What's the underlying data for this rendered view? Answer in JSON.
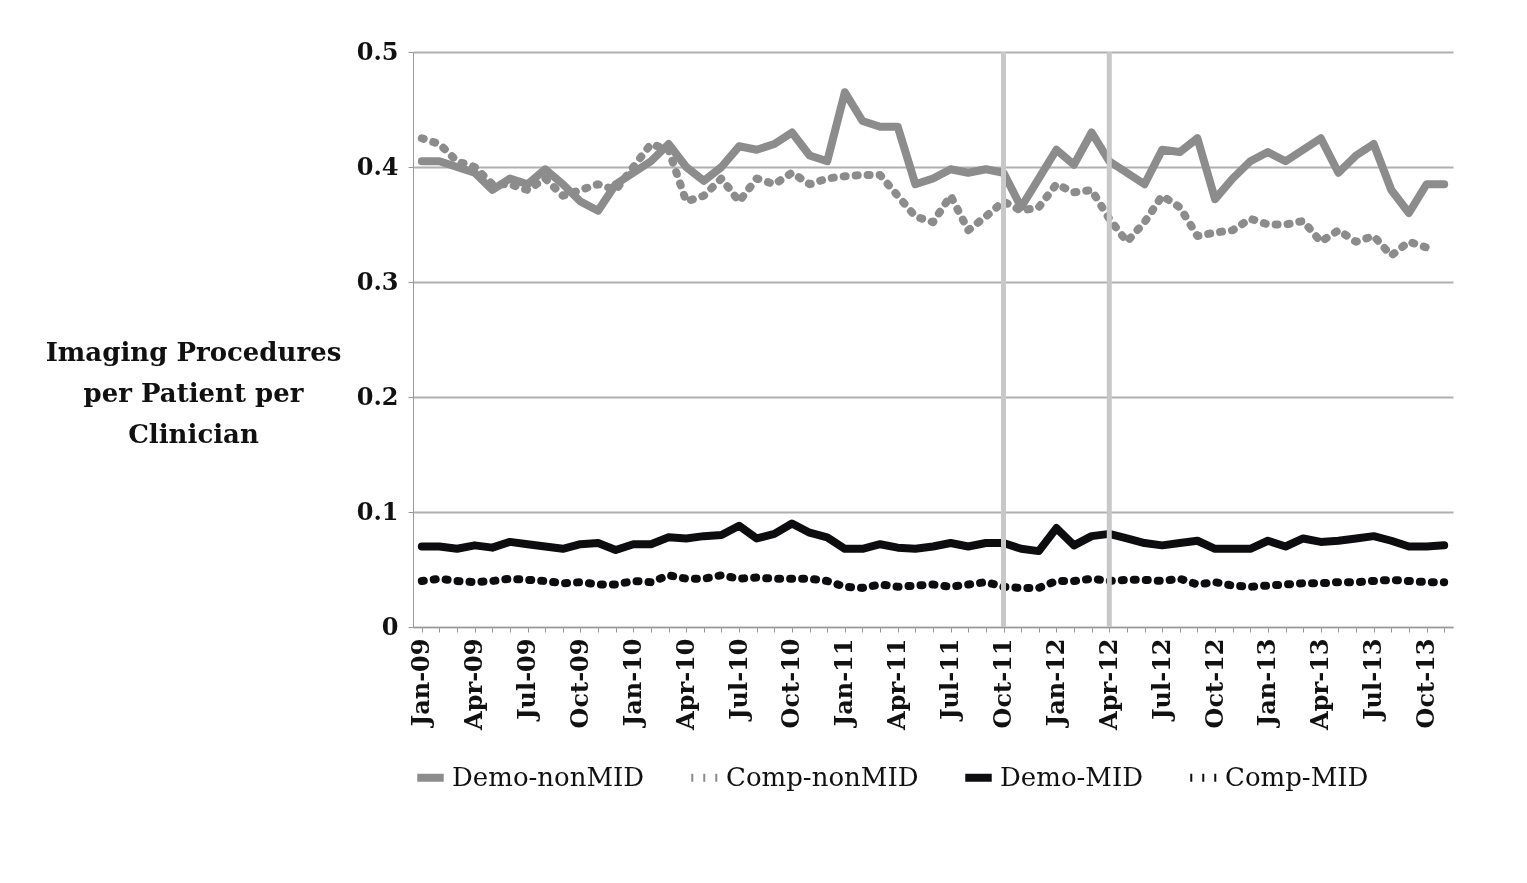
{
  "chart_data": {
    "type": "line",
    "ylabel": "Imaging Procedures per Patient per Clinician",
    "categories": [
      "Jan-09",
      null,
      null,
      "Apr-09",
      null,
      null,
      "Jul-09",
      null,
      null,
      "Oct-09",
      null,
      null,
      "Jan-10",
      null,
      null,
      "Apr-10",
      null,
      null,
      "Jul-10",
      null,
      null,
      "Oct-10",
      null,
      null,
      "Jan-11",
      null,
      null,
      "Apr-11",
      null,
      null,
      "Jul-11",
      null,
      null,
      "Oct-11",
      null,
      null,
      "Jan-12",
      null,
      null,
      "Apr-12",
      null,
      null,
      "Jul-12",
      null,
      null,
      "Oct-12",
      null,
      null,
      "Jan-13",
      null,
      null,
      "Apr-13",
      null,
      null,
      "Jul-13",
      null,
      null,
      "Oct-13",
      null
    ],
    "series": [
      {
        "name": "Demo-nonMID",
        "color": "#8c8c8c",
        "line_style": "solid",
        "values": [
          0.405,
          0.405,
          0.4,
          0.395,
          0.38,
          0.39,
          0.385,
          0.398,
          0.385,
          0.37,
          0.362,
          0.385,
          0.395,
          0.405,
          0.42,
          0.4,
          0.388,
          0.4,
          0.418,
          0.415,
          0.42,
          0.43,
          0.41,
          0.405,
          0.465,
          0.44,
          0.435,
          0.435,
          0.385,
          0.39,
          0.398,
          0.395,
          0.398,
          0.395,
          0.365,
          0.39,
          0.415,
          0.402,
          0.43,
          0.405,
          0.395,
          0.385,
          0.415,
          0.413,
          0.425,
          0.372,
          0.39,
          0.405,
          0.413,
          0.405,
          0.415,
          0.425,
          0.395,
          0.41,
          0.42,
          0.38,
          0.36,
          0.385,
          0.385
        ]
      },
      {
        "name": "Comp-nonMID",
        "color": "#8c8c8c",
        "line_style": "dotted",
        "values": [
          0.425,
          0.42,
          0.405,
          0.4,
          0.385,
          0.385,
          0.38,
          0.39,
          0.375,
          0.38,
          0.385,
          0.38,
          0.4,
          0.42,
          0.415,
          0.37,
          0.375,
          0.39,
          0.37,
          0.39,
          0.385,
          0.395,
          0.385,
          0.39,
          0.392,
          0.393,
          0.393,
          0.375,
          0.357,
          0.352,
          0.375,
          0.345,
          0.357,
          0.37,
          0.362,
          0.365,
          0.385,
          0.378,
          0.38,
          0.355,
          0.335,
          0.352,
          0.375,
          0.365,
          0.34,
          0.343,
          0.345,
          0.355,
          0.35,
          0.35,
          0.353,
          0.335,
          0.345,
          0.335,
          0.34,
          0.323,
          0.335,
          0.33,
          null
        ]
      },
      {
        "name": "Demo-MID",
        "color": "#0d0d10",
        "line_style": "solid",
        "values": [
          0.07,
          0.07,
          0.068,
          0.071,
          0.069,
          0.074,
          0.072,
          0.07,
          0.068,
          0.072,
          0.073,
          0.067,
          0.072,
          0.072,
          0.078,
          0.077,
          0.079,
          0.08,
          0.088,
          0.077,
          0.081,
          0.09,
          0.082,
          0.078,
          0.068,
          0.068,
          0.072,
          0.069,
          0.068,
          0.07,
          0.073,
          0.07,
          0.073,
          0.073,
          0.068,
          0.066,
          0.086,
          0.071,
          0.079,
          0.081,
          0.077,
          0.073,
          0.071,
          0.073,
          0.075,
          0.068,
          0.068,
          0.068,
          0.075,
          0.07,
          0.077,
          0.074,
          0.075,
          0.077,
          0.079,
          0.075,
          0.07,
          0.07,
          0.071
        ]
      },
      {
        "name": "Comp-MID",
        "color": "#0d0d10",
        "line_style": "dotted",
        "values": [
          0.04,
          0.042,
          0.04,
          0.039,
          0.04,
          0.042,
          0.041,
          0.04,
          0.038,
          0.039,
          0.037,
          0.037,
          0.04,
          0.039,
          0.045,
          0.042,
          0.042,
          0.045,
          0.042,
          0.043,
          0.042,
          0.042,
          0.042,
          0.04,
          0.035,
          0.034,
          0.037,
          0.035,
          0.036,
          0.037,
          0.035,
          0.037,
          0.039,
          0.035,
          0.034,
          0.034,
          0.04,
          0.04,
          0.042,
          0.04,
          0.041,
          0.041,
          0.04,
          0.042,
          0.037,
          0.039,
          0.036,
          0.035,
          0.036,
          0.037,
          0.038,
          0.038,
          0.039,
          0.039,
          0.04,
          0.041,
          0.04,
          0.039,
          0.039
        ]
      }
    ],
    "ylim": [
      0,
      0.5
    ],
    "yticks": [
      0,
      {
        "value": 0.1,
        "label": "0.1"
      },
      {
        "value": 0.2,
        "label": "0.2"
      },
      {
        "value": 0.3,
        "label": "0.3"
      },
      {
        "value": 0.4,
        "label": "0.4"
      },
      {
        "value": 0.5,
        "label": "0.5"
      }
    ],
    "grid": "y",
    "legend": "bottom",
    "ref_lines": [
      {
        "axis": "x",
        "value": "Oct-11",
        "color": "#c8c8c8"
      },
      {
        "axis": "x",
        "value": "Apr-12",
        "color": "#c8c8c8"
      }
    ]
  }
}
